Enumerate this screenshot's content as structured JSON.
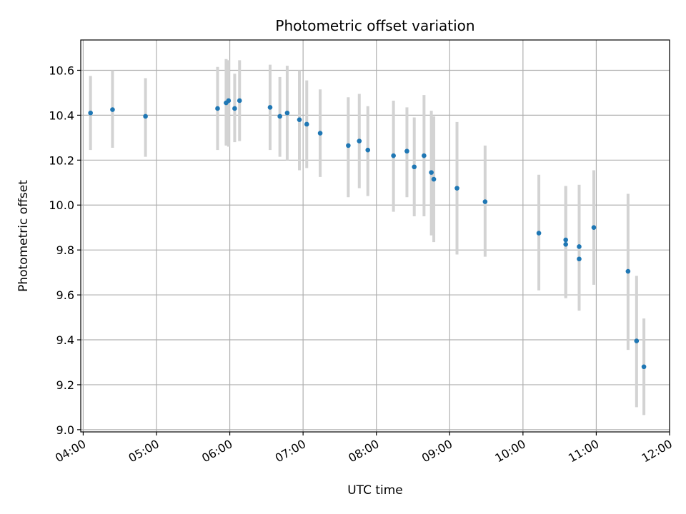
{
  "chart_data": {
    "type": "scatter",
    "title": "Photometric offset variation",
    "xlabel": "UTC time",
    "ylabel": "Photometric offset",
    "xlim": [
      "03:58",
      "12:00"
    ],
    "ylim": [
      8.99,
      10.735
    ],
    "x_ticks": [
      "04:00",
      "05:00",
      "06:00",
      "07:00",
      "08:00",
      "09:00",
      "10:00",
      "11:00",
      "12:00"
    ],
    "y_ticks": [
      "9.0",
      "9.2",
      "9.4",
      "9.6",
      "9.8",
      "10.0",
      "10.2",
      "10.4",
      "10.6"
    ],
    "grid": true,
    "point_color": "#1f77b4",
    "errorbar_color": "#d3d3d3",
    "series": [
      {
        "points": [
          {
            "t": "04:06",
            "y": 10.41,
            "lo": 10.245,
            "hi": 10.575
          },
          {
            "t": "04:24",
            "y": 10.425,
            "lo": 10.255,
            "hi": 10.6
          },
          {
            "t": "04:51",
            "y": 10.395,
            "lo": 10.215,
            "hi": 10.565
          },
          {
            "t": "05:50",
            "y": 10.43,
            "lo": 10.245,
            "hi": 10.615
          },
          {
            "t": "05:57",
            "y": 10.455,
            "lo": 10.265,
            "hi": 10.65
          },
          {
            "t": "05:59",
            "y": 10.465,
            "lo": 10.26,
            "hi": 10.645
          },
          {
            "t": "06:04",
            "y": 10.43,
            "lo": 10.28,
            "hi": 10.585
          },
          {
            "t": "06:08",
            "y": 10.465,
            "lo": 10.285,
            "hi": 10.645
          },
          {
            "t": "06:33",
            "y": 10.435,
            "lo": 10.245,
            "hi": 10.625
          },
          {
            "t": "06:41",
            "y": 10.395,
            "lo": 10.215,
            "hi": 10.57
          },
          {
            "t": "06:47",
            "y": 10.41,
            "lo": 10.2,
            "hi": 10.62
          },
          {
            "t": "06:57",
            "y": 10.38,
            "lo": 10.155,
            "hi": 10.6
          },
          {
            "t": "07:03",
            "y": 10.36,
            "lo": 10.165,
            "hi": 10.555
          },
          {
            "t": "07:14",
            "y": 10.32,
            "lo": 10.125,
            "hi": 10.515
          },
          {
            "t": "07:37",
            "y": 10.265,
            "lo": 10.035,
            "hi": 10.48
          },
          {
            "t": "07:46",
            "y": 10.285,
            "lo": 10.075,
            "hi": 10.495
          },
          {
            "t": "07:53",
            "y": 10.245,
            "lo": 10.04,
            "hi": 10.44
          },
          {
            "t": "08:14",
            "y": 10.22,
            "lo": 9.97,
            "hi": 10.465
          },
          {
            "t": "08:25",
            "y": 10.24,
            "lo": 10.035,
            "hi": 10.435
          },
          {
            "t": "08:31",
            "y": 10.17,
            "lo": 9.95,
            "hi": 10.39
          },
          {
            "t": "08:39",
            "y": 10.22,
            "lo": 9.95,
            "hi": 10.49
          },
          {
            "t": "08:45",
            "y": 10.145,
            "lo": 9.865,
            "hi": 10.42
          },
          {
            "t": "08:47",
            "y": 10.115,
            "lo": 9.835,
            "hi": 10.395
          },
          {
            "t": "09:06",
            "y": 10.075,
            "lo": 9.78,
            "hi": 10.37
          },
          {
            "t": "09:29",
            "y": 10.015,
            "lo": 9.77,
            "hi": 10.265
          },
          {
            "t": "10:13",
            "y": 9.875,
            "lo": 9.62,
            "hi": 10.135
          },
          {
            "t": "10:35",
            "y": 9.825,
            "lo": 9.585,
            "hi": 10.085
          },
          {
            "t": "10:35",
            "y": 9.845,
            "lo": 9.59,
            "hi": 10.085
          },
          {
            "t": "10:46",
            "y": 9.76,
            "lo": 9.53,
            "hi": 10.09
          },
          {
            "t": "10:46",
            "y": 9.815,
            "lo": 9.53,
            "hi": 10.09
          },
          {
            "t": "10:58",
            "y": 9.9,
            "lo": 9.645,
            "hi": 10.155
          },
          {
            "t": "11:26",
            "y": 9.705,
            "lo": 9.355,
            "hi": 10.05
          },
          {
            "t": "11:33",
            "y": 9.395,
            "lo": 9.1,
            "hi": 9.685
          },
          {
            "t": "11:39",
            "y": 9.28,
            "lo": 9.065,
            "hi": 9.495
          }
        ]
      }
    ]
  }
}
